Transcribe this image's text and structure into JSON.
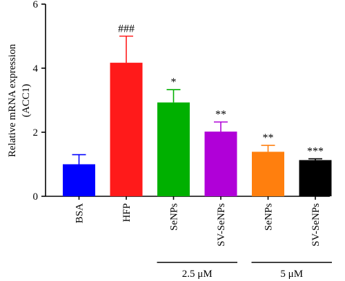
{
  "chart_data": {
    "type": "bar",
    "ylabel": "Relative mRNA expression",
    "ylabel_sub": "(ACC1)",
    "ylim": [
      0,
      6
    ],
    "yticks": [
      0,
      2,
      4,
      6
    ],
    "grid": false,
    "categories": [
      "BSA",
      "HFP",
      "SeNPs",
      "SV-SeNPs",
      "SeNPs",
      "SV-SeNPs"
    ],
    "values": [
      1.0,
      4.17,
      2.93,
      2.02,
      1.39,
      1.13
    ],
    "errors": [
      0.3,
      0.83,
      0.4,
      0.3,
      0.2,
      0.04
    ],
    "significance": [
      "",
      "###",
      "*",
      "**",
      "**",
      "***"
    ],
    "colors": [
      "#0000ff",
      "#ff1a1a",
      "#00b000",
      "#b000d8",
      "#ff7f0e",
      "#000000"
    ],
    "groups": [
      {
        "label": "2.5 μM",
        "categories": [
          2,
          3
        ]
      },
      {
        "label": "5 μM",
        "categories": [
          4,
          5
        ]
      }
    ]
  }
}
